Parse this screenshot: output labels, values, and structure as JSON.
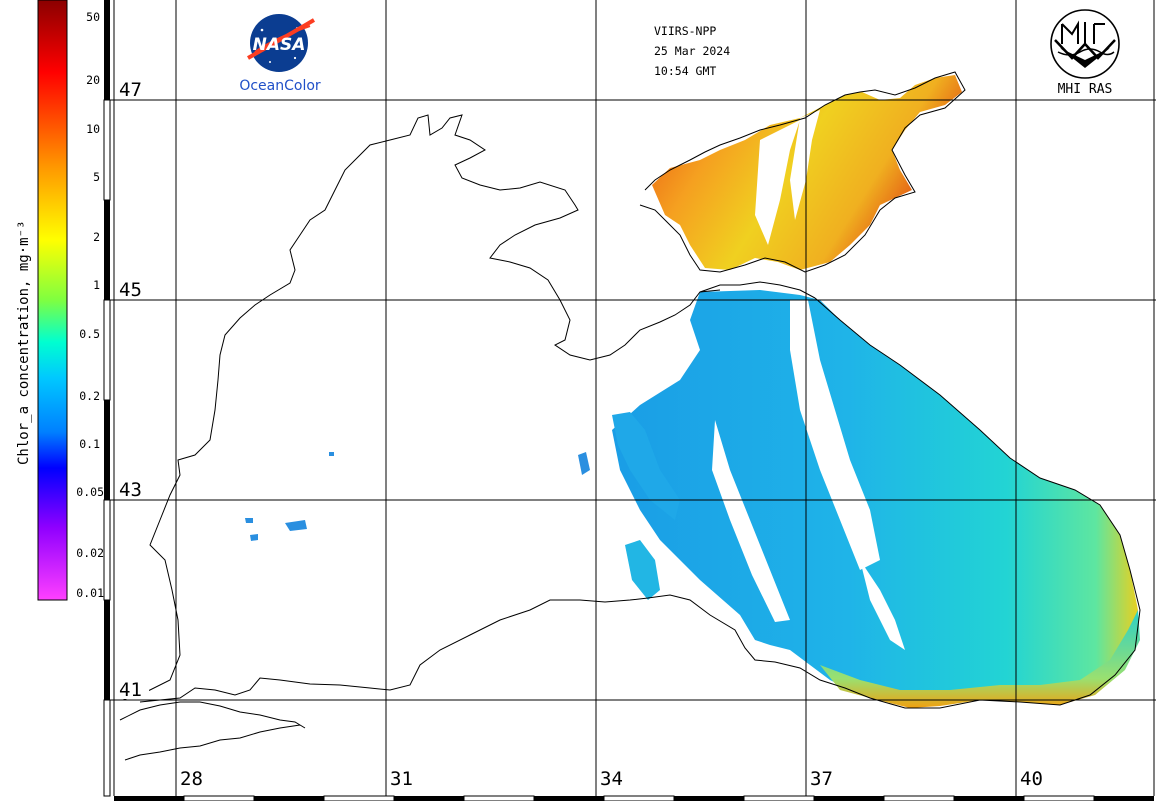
{
  "header": {
    "satellite": "VIIRS-NPP",
    "date": "25 Mar 2024",
    "time": "10:54 GMT"
  },
  "logos": {
    "nasa_text": "NASA",
    "oceancolor_text": "OceanColor",
    "mhi_text": "MHI RAS"
  },
  "colorbar": {
    "title": "Chlor_a concentration, mg·m⁻³",
    "ticks": [
      "50",
      "20",
      "10",
      "5",
      "2",
      "1",
      "0.5",
      "0.2",
      "0.1",
      "0.05",
      "0.02",
      "0.01"
    ]
  },
  "grid": {
    "lat_labels": [
      "47",
      "45",
      "43",
      "41"
    ],
    "lon_labels": [
      "28",
      "31",
      "34",
      "37",
      "40"
    ]
  },
  "colors": {
    "coast": "#000000",
    "grid": "#000000",
    "low_chl": "#1aa0e8",
    "mid_chl": "#20d8d0",
    "high_chl": "#f07010"
  }
}
